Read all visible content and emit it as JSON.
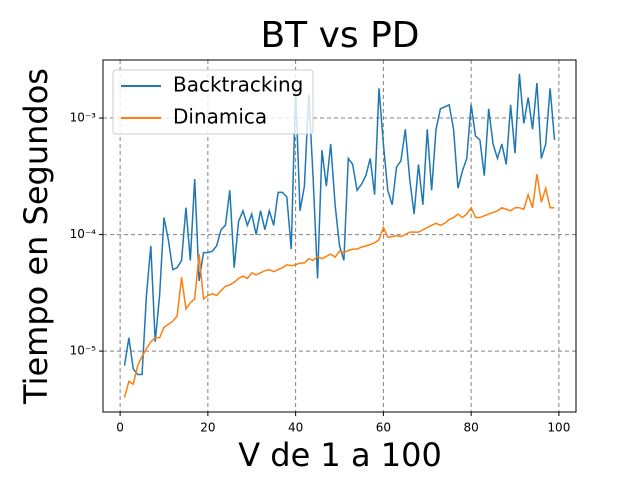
{
  "chart_data": {
    "type": "line",
    "title": "BT vs PD",
    "xlabel": "V de 1 a 100",
    "ylabel": "Tiempo en Segundos",
    "yscale": "log",
    "grid": true,
    "legend": "upper left",
    "x": [
      1,
      2,
      3,
      4,
      5,
      6,
      7,
      8,
      9,
      10,
      11,
      12,
      13,
      14,
      15,
      16,
      17,
      18,
      19,
      20,
      21,
      22,
      23,
      24,
      25,
      26,
      27,
      28,
      29,
      30,
      31,
      32,
      33,
      34,
      35,
      36,
      37,
      38,
      39,
      40,
      41,
      42,
      43,
      44,
      45,
      46,
      47,
      48,
      49,
      50,
      51,
      52,
      53,
      54,
      55,
      56,
      57,
      58,
      59,
      60,
      61,
      62,
      63,
      64,
      65,
      66,
      67,
      68,
      69,
      70,
      71,
      72,
      73,
      74,
      75,
      76,
      77,
      78,
      79,
      80,
      81,
      82,
      83,
      84,
      85,
      86,
      87,
      88,
      89,
      90,
      91,
      92,
      93,
      94,
      95,
      96,
      97,
      98,
      99
    ],
    "series": [
      {
        "name": "Backtracking",
        "color": "#1f77b4",
        "values": [
          7.5e-06,
          1.3e-05,
          7e-06,
          6.3e-06,
          6.3e-06,
          3e-05,
          8e-05,
          1.2e-05,
          3e-05,
          0.00014,
          9e-05,
          5e-05,
          5.2e-05,
          6e-05,
          0.00017,
          6e-05,
          0.0003,
          4e-05,
          7e-05,
          7e-05,
          7.2e-05,
          8e-05,
          0.00011,
          0.00012,
          0.00024,
          5.2e-05,
          0.00013,
          0.00016,
          0.00012,
          0.00015,
          0.0001,
          0.00016,
          0.00011,
          0.00016,
          0.00012,
          0.00023,
          0.00023,
          0.00021,
          7.5e-05,
          0.0018,
          0.00016,
          0.00026,
          0.0016,
          0.0003,
          4.2e-05,
          0.00053,
          0.00026,
          0.0006,
          0.00018,
          8e-05,
          6e-05,
          0.00045,
          0.0004,
          0.00024,
          0.00027,
          0.00032,
          0.00045,
          0.00022,
          0.0018,
          0.0006,
          0.00024,
          0.00018,
          0.00038,
          0.00043,
          0.0008,
          0.0003,
          0.00015,
          0.0004,
          0.00018,
          0.0008,
          0.00024,
          0.0008,
          0.0012,
          0.00125,
          0.0013,
          0.0008,
          0.00025,
          0.00035,
          0.00045,
          0.0013,
          0.0007,
          0.00065,
          0.00032,
          0.0012,
          0.0006,
          0.00045,
          0.0006,
          0.0004,
          0.0013,
          0.0005,
          0.0024,
          0.0009,
          0.0015,
          0.0008,
          0.002,
          0.00045,
          0.0006,
          0.0018,
          0.00065
        ]
      },
      {
        "name": "Dinamica",
        "color": "#ff7f0e",
        "values": [
          4e-06,
          5.5e-06,
          5.2e-06,
          7.5e-06,
          9e-06,
          1.05e-05,
          1.2e-05,
          1.3e-05,
          1.3e-05,
          1.6e-05,
          1.7e-05,
          1.8e-05,
          2e-05,
          4.3e-05,
          2.3e-05,
          2.6e-05,
          2.8e-05,
          6.8e-05,
          2.8e-05,
          3e-05,
          3.1e-05,
          3e-05,
          3.3e-05,
          3.6e-05,
          3.7e-05,
          3.9e-05,
          4.2e-05,
          4.4e-05,
          4.2e-05,
          4.7e-05,
          4.5e-05,
          4.7e-05,
          4.9e-05,
          5e-05,
          4.8e-05,
          5e-05,
          5.2e-05,
          5.5e-05,
          5.4e-05,
          5.5e-05,
          5.7e-05,
          5.7e-05,
          6.2e-05,
          6e-05,
          6.5e-05,
          6.2e-05,
          6.5e-05,
          6.8e-05,
          6.4e-05,
          7.2e-05,
          7e-05,
          7.3e-05,
          7.5e-05,
          7.5e-05,
          7.8e-05,
          8e-05,
          8.2e-05,
          8.5e-05,
          9e-05,
          0.000115,
          9.5e-05,
          9.6e-05,
          9.8e-05,
          9.6e-05,
          0.0001,
          0.000105,
          0.000105,
          0.000105,
          0.00011,
          0.000115,
          0.00012,
          0.000125,
          0.00012,
          0.000125,
          0.000135,
          0.00014,
          0.00015,
          0.00014,
          0.00015,
          0.00017,
          0.00014,
          0.00014,
          0.000145,
          0.00015,
          0.000155,
          0.00016,
          0.00017,
          0.000165,
          0.00016,
          0.00017,
          0.00017,
          0.000165,
          0.00022,
          0.00017,
          0.00033,
          0.00019,
          0.00025,
          0.00017,
          0.00017
        ]
      }
    ],
    "xlim": [
      -3.9,
      103.9
    ],
    "xticks": [
      0,
      20,
      40,
      60,
      80,
      100
    ],
    "ylim": [
      3e-06,
      0.00315
    ],
    "yticks": [
      {
        "value": 1e-05,
        "label": "10⁻⁵"
      },
      {
        "value": 0.0001,
        "label": "10⁻⁴"
      },
      {
        "value": 0.001,
        "label": "10⁻³"
      }
    ]
  }
}
